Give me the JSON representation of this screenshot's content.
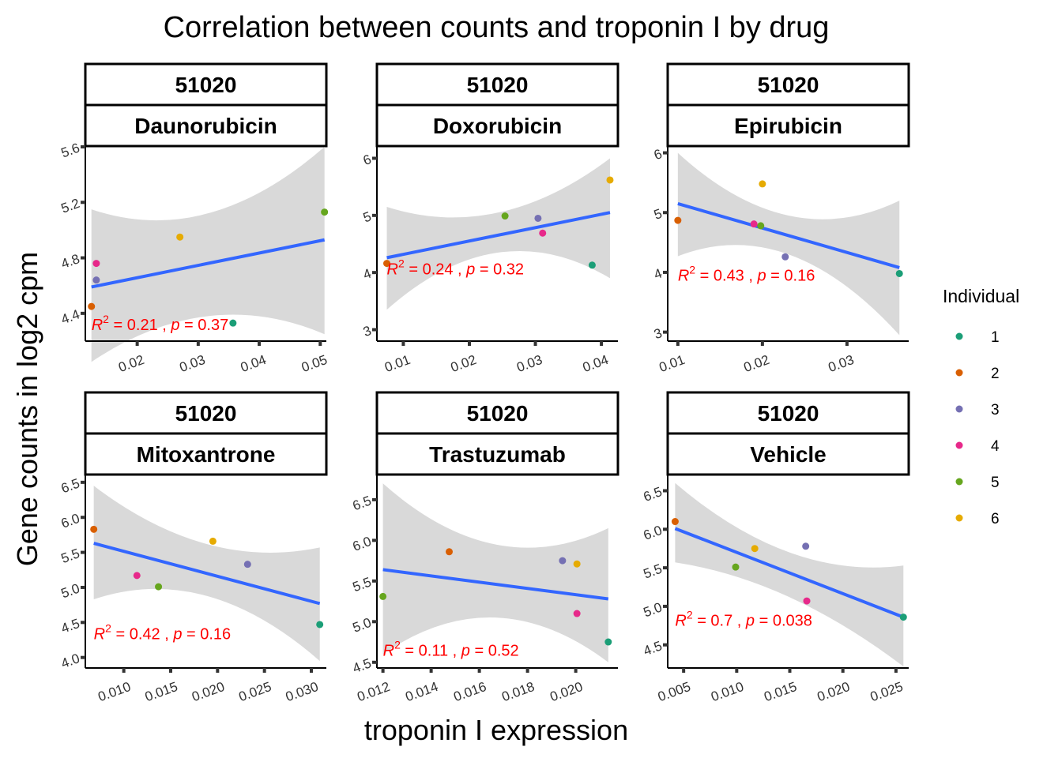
{
  "title": "Correlation between counts and troponin I by drug",
  "xlabel": "troponin I expression",
  "ylabel": "Gene counts in log2 cpm",
  "legend": {
    "title": "Individual",
    "items": [
      {
        "label": "1",
        "color": "#1b9e77"
      },
      {
        "label": "2",
        "color": "#d95f02"
      },
      {
        "label": "3",
        "color": "#7570b3"
      },
      {
        "label": "4",
        "color": "#e7298a"
      },
      {
        "label": "5",
        "color": "#66a61e"
      },
      {
        "label": "6",
        "color": "#e6ab02"
      }
    ]
  },
  "chart_data": [
    {
      "type": "scatter",
      "gene": "51020",
      "drug": "Daunorubicin",
      "xlim": [
        0.0115,
        0.051
      ],
      "ylim": [
        4.2,
        5.6
      ],
      "xticks": [
        0.02,
        0.03,
        0.04,
        0.05
      ],
      "xtick_labels": [
        "0.02",
        "0.03",
        "0.04",
        "0.05"
      ],
      "yticks": [
        4.4,
        4.8,
        5.2,
        5.6
      ],
      "ytick_labels": [
        "4.4",
        "4.8",
        "5.2",
        "5.6"
      ],
      "points": [
        {
          "individual": "1",
          "x": 0.0357,
          "y": 4.33
        },
        {
          "individual": "2",
          "x": 0.0125,
          "y": 4.45
        },
        {
          "individual": "3",
          "x": 0.0133,
          "y": 4.64
        },
        {
          "individual": "4",
          "x": 0.0133,
          "y": 4.76
        },
        {
          "individual": "5",
          "x": 0.0507,
          "y": 5.13
        },
        {
          "individual": "6",
          "x": 0.027,
          "y": 4.95
        }
      ],
      "fit": {
        "x": [
          0.0125,
          0.0507
        ],
        "y": [
          4.59,
          4.93
        ]
      },
      "band": {
        "x": [
          0.0125,
          0.0315,
          0.0507
        ],
        "lower": [
          4.05,
          4.38,
          4.25
        ],
        "upper": [
          5.15,
          5.12,
          5.6
        ]
      },
      "stat": {
        "r2": "0.21",
        "p": "0.37",
        "x": 0.0125,
        "y": 4.28
      }
    },
    {
      "type": "scatter",
      "gene": "51020",
      "drug": "Doxorubicin",
      "xlim": [
        0.006,
        0.0425
      ],
      "ylim": [
        2.8,
        6.2
      ],
      "xticks": [
        0.01,
        0.02,
        0.03,
        0.04
      ],
      "xtick_labels": [
        "0.01",
        "0.02",
        "0.03",
        "0.04"
      ],
      "yticks": [
        3,
        4,
        5,
        6
      ],
      "ytick_labels": [
        "3",
        "4",
        "5",
        "6"
      ],
      "points": [
        {
          "individual": "1",
          "x": 0.0386,
          "y": 4.13
        },
        {
          "individual": "2",
          "x": 0.0075,
          "y": 4.16
        },
        {
          "individual": "3",
          "x": 0.0304,
          "y": 4.95
        },
        {
          "individual": "4",
          "x": 0.0311,
          "y": 4.69
        },
        {
          "individual": "5",
          "x": 0.0254,
          "y": 4.99
        },
        {
          "individual": "6",
          "x": 0.0413,
          "y": 5.62
        }
      ],
      "fit": {
        "x": [
          0.0075,
          0.0413
        ],
        "y": [
          4.26,
          5.05
        ]
      },
      "band": {
        "x": [
          0.0075,
          0.0244,
          0.0413
        ],
        "lower": [
          3.35,
          4.35,
          3.9
        ],
        "upper": [
          5.15,
          5.05,
          6.0
        ]
      },
      "stat": {
        "r2": "0.24",
        "p": "0.32",
        "x": 0.0075,
        "y": 3.97
      }
    },
    {
      "type": "scatter",
      "gene": "51020",
      "drug": "Epirubicin",
      "xlim": [
        0.0088,
        0.0373
      ],
      "ylim": [
        2.85,
        6.1
      ],
      "xticks": [
        0.01,
        0.02,
        0.03
      ],
      "xtick_labels": [
        "0.01",
        "0.02",
        "0.03"
      ],
      "yticks": [
        3,
        4,
        5,
        6
      ],
      "ytick_labels": [
        "3",
        "4",
        "5",
        "6"
      ],
      "points": [
        {
          "individual": "1",
          "x": 0.0362,
          "y": 3.98
        },
        {
          "individual": "2",
          "x": 0.01,
          "y": 4.87
        },
        {
          "individual": "3",
          "x": 0.0227,
          "y": 4.26
        },
        {
          "individual": "4",
          "x": 0.019,
          "y": 4.81
        },
        {
          "individual": "5",
          "x": 0.0198,
          "y": 4.78
        },
        {
          "individual": "6",
          "x": 0.02,
          "y": 5.48
        }
      ],
      "fit": {
        "x": [
          0.01,
          0.0362
        ],
        "y": [
          5.15,
          4.08
        ]
      },
      "band": {
        "x": [
          0.01,
          0.0231,
          0.0362
        ],
        "lower": [
          4.27,
          4.3,
          2.95
        ],
        "upper": [
          6.0,
          4.95,
          5.2
        ]
      },
      "stat": {
        "r2": "0.43",
        "p": "0.16",
        "x": 0.01,
        "y": 3.86
      }
    },
    {
      "type": "scatter",
      "gene": "51020",
      "drug": "Mitoxantrone",
      "xlim": [
        0.0059,
        0.0316
      ],
      "ylim": [
        3.85,
        6.6
      ],
      "xticks": [
        0.01,
        0.015,
        0.02,
        0.025,
        0.03
      ],
      "xtick_labels": [
        "0.010",
        "0.015",
        "0.020",
        "0.025",
        "0.030"
      ],
      "yticks": [
        4.0,
        4.5,
        5.0,
        5.5,
        6.0,
        6.5
      ],
      "ytick_labels": [
        "4.0",
        "4.5",
        "5.0",
        "5.5",
        "6.0",
        "6.5"
      ],
      "points": [
        {
          "individual": "1",
          "x": 0.0309,
          "y": 4.47
        },
        {
          "individual": "2",
          "x": 0.0068,
          "y": 5.83
        },
        {
          "individual": "3",
          "x": 0.0232,
          "y": 5.33
        },
        {
          "individual": "4",
          "x": 0.0114,
          "y": 5.17
        },
        {
          "individual": "5",
          "x": 0.0137,
          "y": 5.01
        },
        {
          "individual": "6",
          "x": 0.0195,
          "y": 5.66
        }
      ],
      "fit": {
        "x": [
          0.0068,
          0.0309
        ],
        "y": [
          5.63,
          4.77
        ]
      },
      "band": {
        "x": [
          0.0068,
          0.0188,
          0.0309
        ],
        "lower": [
          4.83,
          4.88,
          3.95
        ],
        "upper": [
          6.45,
          5.62,
          5.57
        ]
      },
      "stat": {
        "r2": "0.42",
        "p": "0.16",
        "x": 0.0068,
        "y": 4.26
      }
    },
    {
      "type": "scatter",
      "gene": "51020",
      "drug": "Trastuzumab",
      "xlim": [
        0.01175,
        0.02175
      ],
      "ylim": [
        4.43,
        6.8
      ],
      "xticks": [
        0.012,
        0.014,
        0.016,
        0.018,
        0.02
      ],
      "xtick_labels": [
        "0.012",
        "0.014",
        "0.016",
        "0.018",
        "0.020"
      ],
      "yticks": [
        4.5,
        5.0,
        5.5,
        6.0,
        6.5
      ],
      "ytick_labels": [
        "4.5",
        "5.0",
        "5.5",
        "6.0",
        "6.5"
      ],
      "points": [
        {
          "individual": "1",
          "x": 0.02135,
          "y": 4.75
        },
        {
          "individual": "2",
          "x": 0.01475,
          "y": 5.86
        },
        {
          "individual": "3",
          "x": 0.01945,
          "y": 5.75
        },
        {
          "individual": "4",
          "x": 0.02005,
          "y": 5.1
        },
        {
          "individual": "5",
          "x": 0.012,
          "y": 5.31
        },
        {
          "individual": "6",
          "x": 0.02005,
          "y": 5.71
        }
      ],
      "fit": {
        "x": [
          0.012,
          0.02135
        ],
        "y": [
          5.64,
          5.28
        ]
      },
      "band": {
        "x": [
          0.012,
          0.01665,
          0.02135
        ],
        "lower": [
          4.6,
          5.05,
          4.5
        ],
        "upper": [
          6.7,
          5.95,
          6.15
        ]
      },
      "stat": {
        "r2": "0.11",
        "p": "0.52",
        "x": 0.012,
        "y": 4.58
      }
    },
    {
      "type": "scatter",
      "gene": "51020",
      "drug": "Vehicle",
      "xlim": [
        0.0035,
        0.0262
      ],
      "ylim": [
        4.2,
        6.7
      ],
      "xticks": [
        0.005,
        0.01,
        0.015,
        0.02,
        0.025
      ],
      "xtick_labels": [
        "0.005",
        "0.010",
        "0.015",
        "0.020",
        "0.025"
      ],
      "yticks": [
        4.5,
        5.0,
        5.5,
        6.0,
        6.5
      ],
      "ytick_labels": [
        "4.5",
        "5.0",
        "5.5",
        "6.0",
        "6.5"
      ],
      "points": [
        {
          "individual": "1",
          "x": 0.0257,
          "y": 4.86
        },
        {
          "individual": "2",
          "x": 0.0042,
          "y": 6.1
        },
        {
          "individual": "3",
          "x": 0.0165,
          "y": 5.78
        },
        {
          "individual": "4",
          "x": 0.0166,
          "y": 5.07
        },
        {
          "individual": "5",
          "x": 0.0099,
          "y": 5.51
        },
        {
          "individual": "6",
          "x": 0.0117,
          "y": 5.75
        }
      ],
      "fit": {
        "x": [
          0.0042,
          0.0257
        ],
        "y": [
          6.01,
          4.86
        ]
      },
      "band": {
        "x": [
          0.0042,
          0.01495,
          0.0257
        ],
        "lower": [
          5.57,
          5.12,
          4.22
        ],
        "upper": [
          6.6,
          5.7,
          5.53
        ]
      },
      "stat": {
        "r2": "0.7",
        "p": "0.038",
        "x": 0.0042,
        "y": 4.75
      }
    }
  ]
}
